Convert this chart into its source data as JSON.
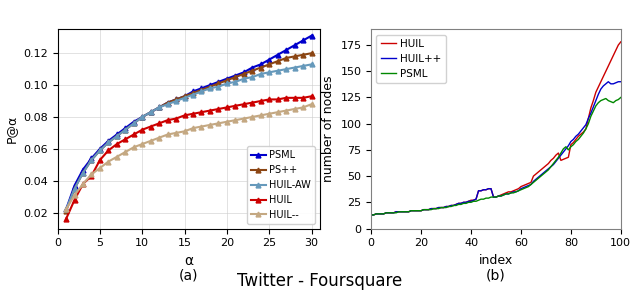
{
  "fig_width": 6.4,
  "fig_height": 2.93,
  "dpi": 100,
  "title": "Twitter - Foursquare",
  "title_fontsize": 12,
  "left_xlabel": "α",
  "left_ylabel": "P@α",
  "left_xlim": [
    0,
    31
  ],
  "left_ylim": [
    0.01,
    0.135
  ],
  "left_xticks": [
    0,
    5,
    10,
    15,
    20,
    25,
    30
  ],
  "left_yticks": [
    0.02,
    0.04,
    0.06,
    0.08,
    0.1,
    0.12
  ],
  "left_subtitle": "(a)",
  "right_xlabel": "index",
  "right_ylabel": "number of nodes",
  "right_xlim": [
    0,
    100
  ],
  "right_ylim": [
    0,
    190
  ],
  "right_xticks": [
    0,
    20,
    40,
    60,
    80,
    100
  ],
  "right_yticks": [
    0,
    25,
    50,
    75,
    100,
    125,
    150,
    175
  ],
  "right_subtitle": "(b)",
  "lines_left": [
    {
      "label": "PSML",
      "color": "#0000cc",
      "marker": "^",
      "markersize": 3.5,
      "linewidth": 1.5,
      "x": [
        1,
        2,
        3,
        4,
        5,
        6,
        7,
        8,
        9,
        10,
        11,
        12,
        13,
        14,
        15,
        16,
        17,
        18,
        19,
        20,
        21,
        22,
        23,
        24,
        25,
        26,
        27,
        28,
        29,
        30
      ],
      "y": [
        0.022,
        0.037,
        0.047,
        0.054,
        0.06,
        0.065,
        0.069,
        0.073,
        0.077,
        0.08,
        0.083,
        0.086,
        0.089,
        0.091,
        0.093,
        0.096,
        0.098,
        0.1,
        0.102,
        0.104,
        0.106,
        0.108,
        0.111,
        0.113,
        0.116,
        0.119,
        0.122,
        0.125,
        0.128,
        0.131
      ]
    },
    {
      "label": "PS++",
      "color": "#8B4513",
      "marker": "^",
      "markersize": 3.5,
      "linewidth": 1.5,
      "x": [
        1,
        2,
        3,
        4,
        5,
        6,
        7,
        8,
        9,
        10,
        11,
        12,
        13,
        14,
        15,
        16,
        17,
        18,
        19,
        20,
        21,
        22,
        23,
        24,
        25,
        26,
        27,
        28,
        29,
        30
      ],
      "y": [
        0.021,
        0.035,
        0.045,
        0.053,
        0.059,
        0.064,
        0.068,
        0.072,
        0.076,
        0.08,
        0.083,
        0.086,
        0.089,
        0.091,
        0.093,
        0.095,
        0.097,
        0.099,
        0.101,
        0.103,
        0.105,
        0.107,
        0.109,
        0.111,
        0.113,
        0.115,
        0.117,
        0.118,
        0.119,
        0.12
      ]
    },
    {
      "label": "HUIL-AW",
      "color": "#6699bb",
      "marker": "^",
      "markersize": 3.5,
      "linewidth": 1.5,
      "x": [
        1,
        2,
        3,
        4,
        5,
        6,
        7,
        8,
        9,
        10,
        11,
        12,
        13,
        14,
        15,
        16,
        17,
        18,
        19,
        20,
        21,
        22,
        23,
        24,
        25,
        26,
        27,
        28,
        29,
        30
      ],
      "y": [
        0.022,
        0.035,
        0.045,
        0.053,
        0.059,
        0.064,
        0.068,
        0.072,
        0.076,
        0.08,
        0.083,
        0.086,
        0.088,
        0.09,
        0.092,
        0.094,
        0.096,
        0.098,
        0.099,
        0.101,
        0.102,
        0.104,
        0.105,
        0.107,
        0.108,
        0.109,
        0.11,
        0.111,
        0.112,
        0.113
      ]
    },
    {
      "label": "HUIL",
      "color": "#cc0000",
      "marker": "^",
      "markersize": 3.5,
      "linewidth": 1.5,
      "x": [
        1,
        2,
        3,
        4,
        5,
        6,
        7,
        8,
        9,
        10,
        11,
        12,
        13,
        14,
        15,
        16,
        17,
        18,
        19,
        20,
        21,
        22,
        23,
        24,
        25,
        26,
        27,
        28,
        29,
        30
      ],
      "y": [
        0.016,
        0.028,
        0.038,
        0.043,
        0.053,
        0.059,
        0.063,
        0.066,
        0.069,
        0.072,
        0.074,
        0.076,
        0.078,
        0.079,
        0.081,
        0.082,
        0.083,
        0.084,
        0.085,
        0.086,
        0.087,
        0.088,
        0.089,
        0.09,
        0.091,
        0.091,
        0.092,
        0.092,
        0.092,
        0.093
      ]
    },
    {
      "label": "HUIL--",
      "color": "#c4a882",
      "marker": "^",
      "markersize": 3.5,
      "linewidth": 1.5,
      "x": [
        1,
        2,
        3,
        4,
        5,
        6,
        7,
        8,
        9,
        10,
        11,
        12,
        13,
        14,
        15,
        16,
        17,
        18,
        19,
        20,
        21,
        22,
        23,
        24,
        25,
        26,
        27,
        28,
        29,
        30
      ],
      "y": [
        0.022,
        0.031,
        0.038,
        0.044,
        0.048,
        0.052,
        0.055,
        0.058,
        0.061,
        0.063,
        0.065,
        0.067,
        0.069,
        0.07,
        0.071,
        0.073,
        0.074,
        0.075,
        0.076,
        0.077,
        0.078,
        0.079,
        0.08,
        0.081,
        0.082,
        0.083,
        0.084,
        0.085,
        0.086,
        0.088
      ]
    }
  ],
  "lines_right": [
    {
      "label": "HUIL",
      "color": "#cc0000",
      "linewidth": 1.0,
      "x": [
        0,
        1,
        2,
        3,
        4,
        5,
        6,
        7,
        8,
        9,
        10,
        11,
        12,
        13,
        14,
        15,
        16,
        17,
        18,
        19,
        20,
        21,
        22,
        23,
        24,
        25,
        26,
        27,
        28,
        29,
        30,
        31,
        32,
        33,
        34,
        35,
        36,
        37,
        38,
        39,
        40,
        41,
        42,
        43,
        44,
        45,
        46,
        47,
        48,
        49,
        50,
        51,
        52,
        53,
        54,
        55,
        56,
        57,
        58,
        59,
        60,
        61,
        62,
        63,
        64,
        65,
        66,
        67,
        68,
        69,
        70,
        71,
        72,
        73,
        74,
        75,
        76,
        77,
        78,
        79,
        80,
        81,
        82,
        83,
        84,
        85,
        86,
        87,
        88,
        89,
        90,
        91,
        92,
        93,
        94,
        95,
        96,
        97,
        98,
        99,
        100
      ],
      "y": [
        13,
        13,
        14,
        14,
        14,
        14,
        15,
        15,
        15,
        15,
        16,
        16,
        16,
        16,
        16,
        16,
        17,
        17,
        17,
        17,
        17,
        18,
        18,
        18,
        19,
        19,
        19,
        20,
        20,
        20,
        21,
        21,
        22,
        22,
        23,
        24,
        24,
        25,
        25,
        26,
        27,
        27,
        28,
        36,
        36,
        37,
        37,
        38,
        38,
        30,
        30,
        31,
        32,
        33,
        34,
        35,
        35,
        36,
        37,
        38,
        40,
        41,
        42,
        43,
        44,
        50,
        52,
        54,
        56,
        58,
        60,
        62,
        65,
        67,
        70,
        72,
        65,
        66,
        67,
        68,
        80,
        82,
        85,
        88,
        90,
        92,
        95,
        105,
        115,
        122,
        130,
        135,
        140,
        145,
        150,
        155,
        160,
        165,
        170,
        175,
        178
      ]
    },
    {
      "label": "HUIL++",
      "color": "#0000cc",
      "linewidth": 1.0,
      "x": [
        0,
        1,
        2,
        3,
        4,
        5,
        6,
        7,
        8,
        9,
        10,
        11,
        12,
        13,
        14,
        15,
        16,
        17,
        18,
        19,
        20,
        21,
        22,
        23,
        24,
        25,
        26,
        27,
        28,
        29,
        30,
        31,
        32,
        33,
        34,
        35,
        36,
        37,
        38,
        39,
        40,
        41,
        42,
        43,
        44,
        45,
        46,
        47,
        48,
        49,
        50,
        51,
        52,
        53,
        54,
        55,
        56,
        57,
        58,
        59,
        60,
        61,
        62,
        63,
        64,
        65,
        66,
        67,
        68,
        69,
        70,
        71,
        72,
        73,
        74,
        75,
        76,
        77,
        78,
        79,
        80,
        81,
        82,
        83,
        84,
        85,
        86,
        87,
        88,
        89,
        90,
        91,
        92,
        93,
        94,
        95,
        96,
        97,
        98,
        99,
        100
      ],
      "y": [
        13,
        13,
        14,
        14,
        14,
        14,
        15,
        15,
        15,
        15,
        16,
        16,
        16,
        16,
        16,
        16,
        17,
        17,
        17,
        17,
        17,
        18,
        18,
        18,
        19,
        19,
        19,
        20,
        20,
        20,
        21,
        21,
        22,
        22,
        23,
        24,
        24,
        25,
        25,
        26,
        26,
        27,
        28,
        36,
        36,
        37,
        37,
        38,
        38,
        30,
        30,
        31,
        31,
        32,
        33,
        33,
        34,
        35,
        35,
        36,
        38,
        39,
        40,
        41,
        42,
        45,
        47,
        49,
        51,
        53,
        55,
        57,
        59,
        61,
        64,
        67,
        70,
        73,
        76,
        79,
        83,
        85,
        88,
        90,
        93,
        96,
        99,
        105,
        110,
        116,
        122,
        128,
        133,
        136,
        138,
        140,
        138,
        138,
        139,
        140,
        140
      ]
    },
    {
      "label": "PSML",
      "color": "#008800",
      "linewidth": 1.0,
      "x": [
        0,
        1,
        2,
        3,
        4,
        5,
        6,
        7,
        8,
        9,
        10,
        11,
        12,
        13,
        14,
        15,
        16,
        17,
        18,
        19,
        20,
        21,
        22,
        23,
        24,
        25,
        26,
        27,
        28,
        29,
        30,
        31,
        32,
        33,
        34,
        35,
        36,
        37,
        38,
        39,
        40,
        41,
        42,
        43,
        44,
        45,
        46,
        47,
        48,
        49,
        50,
        51,
        52,
        53,
        54,
        55,
        56,
        57,
        58,
        59,
        60,
        61,
        62,
        63,
        64,
        65,
        66,
        67,
        68,
        69,
        70,
        71,
        72,
        73,
        74,
        75,
        76,
        77,
        78,
        79,
        80,
        81,
        82,
        83,
        84,
        85,
        86,
        87,
        88,
        89,
        90,
        91,
        92,
        93,
        94,
        95,
        96,
        97,
        98,
        99,
        100
      ],
      "y": [
        13,
        13,
        14,
        14,
        14,
        14,
        15,
        15,
        15,
        15,
        15,
        16,
        16,
        16,
        16,
        16,
        17,
        17,
        17,
        17,
        17,
        18,
        18,
        18,
        18,
        19,
        19,
        19,
        20,
        20,
        20,
        21,
        21,
        22,
        22,
        23,
        23,
        24,
        24,
        25,
        25,
        26,
        26,
        27,
        28,
        28,
        29,
        29,
        30,
        30,
        30,
        31,
        31,
        32,
        33,
        33,
        34,
        34,
        35,
        36,
        37,
        38,
        39,
        40,
        42,
        44,
        46,
        48,
        50,
        52,
        54,
        56,
        59,
        62,
        65,
        68,
        72,
        76,
        78,
        75,
        78,
        80,
        83,
        85,
        88,
        91,
        95,
        100,
        107,
        112,
        117,
        120,
        122,
        123,
        124,
        122,
        121,
        120,
        122,
        123,
        125
      ]
    }
  ]
}
